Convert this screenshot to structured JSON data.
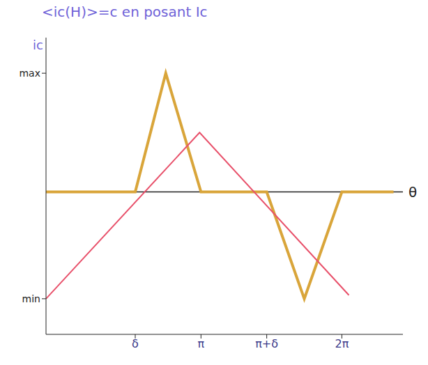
{
  "chart_data": {
    "type": "line",
    "title": "<ic(H)>=c   en posant Ic",
    "x_label": "θ",
    "y_label": "ic",
    "xlim": [
      0,
      7.6
    ],
    "ylim": [
      -1.2,
      1.3
    ],
    "xticks": [
      {
        "value": 1.9,
        "label": "δ"
      },
      {
        "value": 3.3,
        "label": "π"
      },
      {
        "value": 4.7,
        "label": "π+δ"
      },
      {
        "value": 6.3,
        "label": "2π"
      }
    ],
    "yticks": [
      {
        "value": 1,
        "label": "max"
      },
      {
        "value": -0.9,
        "label": "min"
      }
    ],
    "grid": false,
    "series": [
      {
        "color": "#d9a53a",
        "x": [
          0,
          1.9,
          2.55,
          3.3,
          4.7,
          5.5,
          6.3,
          7.4
        ],
        "values": [
          0,
          0,
          1,
          0,
          0,
          -0.9,
          0,
          0
        ]
      },
      {
        "color": "#e8506a",
        "x": [
          0,
          3.27,
          6.45
        ],
        "values": [
          -0.9,
          0.5,
          -0.87
        ]
      }
    ]
  }
}
